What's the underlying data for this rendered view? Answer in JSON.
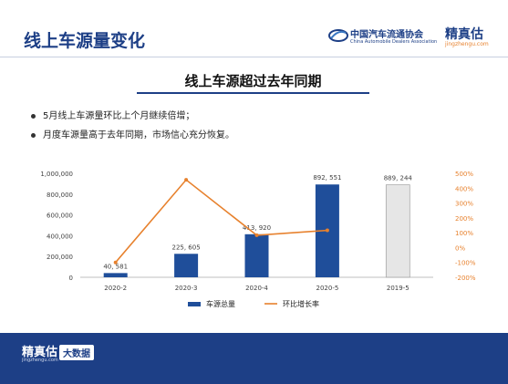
{
  "header": {
    "title": "线上车源量变化",
    "association_name": "中国汽车流通协会",
    "association_en": "China Automobile Dealers Association",
    "brand_name": "精真估",
    "brand_url": "jingzhengu.com"
  },
  "subtitle": "线上车源超过去年同期",
  "bullets": [
    "5月线上车源量环比上个月继续倍增；",
    "月度车源量高于去年同期，市场信心充分恢复。"
  ],
  "footer": {
    "brand_name": "精真估",
    "brand_url": "jingzhengu.com",
    "badge": "大数据"
  },
  "colors": {
    "primary": "#1d3f86",
    "bar": "#1f4e9a",
    "bar_last_year": "#e6e6e6",
    "line": "#e7812d"
  },
  "chart_data": {
    "type": "bar",
    "categories": [
      "2020-2",
      "2020-3",
      "2020-4",
      "2020-5",
      "2019-5"
    ],
    "series": [
      {
        "name": "车源总量",
        "type": "bar",
        "axis": "left",
        "values": [
          40581,
          225605,
          413920,
          892551,
          889244
        ],
        "labels": [
          "40, 581",
          "225, 605",
          "413, 920",
          "892, 551",
          "889, 244"
        ]
      },
      {
        "name": "环比增长率",
        "type": "line",
        "axis": "right",
        "values": [
          -100,
          456,
          83,
          116,
          null
        ]
      }
    ],
    "y_left": {
      "lim": [
        0,
        1000000
      ],
      "ticks": [
        0,
        200000,
        400000,
        600000,
        800000,
        1000000
      ],
      "tick_labels": [
        "0",
        "200,000",
        "400,000",
        "600,000",
        "800,000",
        "1,000,000"
      ]
    },
    "y_right": {
      "lim": [
        -200,
        500
      ],
      "ticks": [
        -200,
        -100,
        0,
        100,
        200,
        300,
        400,
        500
      ],
      "tick_labels": [
        "-200%",
        "-100%",
        "0%",
        "100%",
        "200%",
        "300%",
        "400%",
        "500%"
      ]
    },
    "legend": "bottom-center",
    "grid": false
  }
}
